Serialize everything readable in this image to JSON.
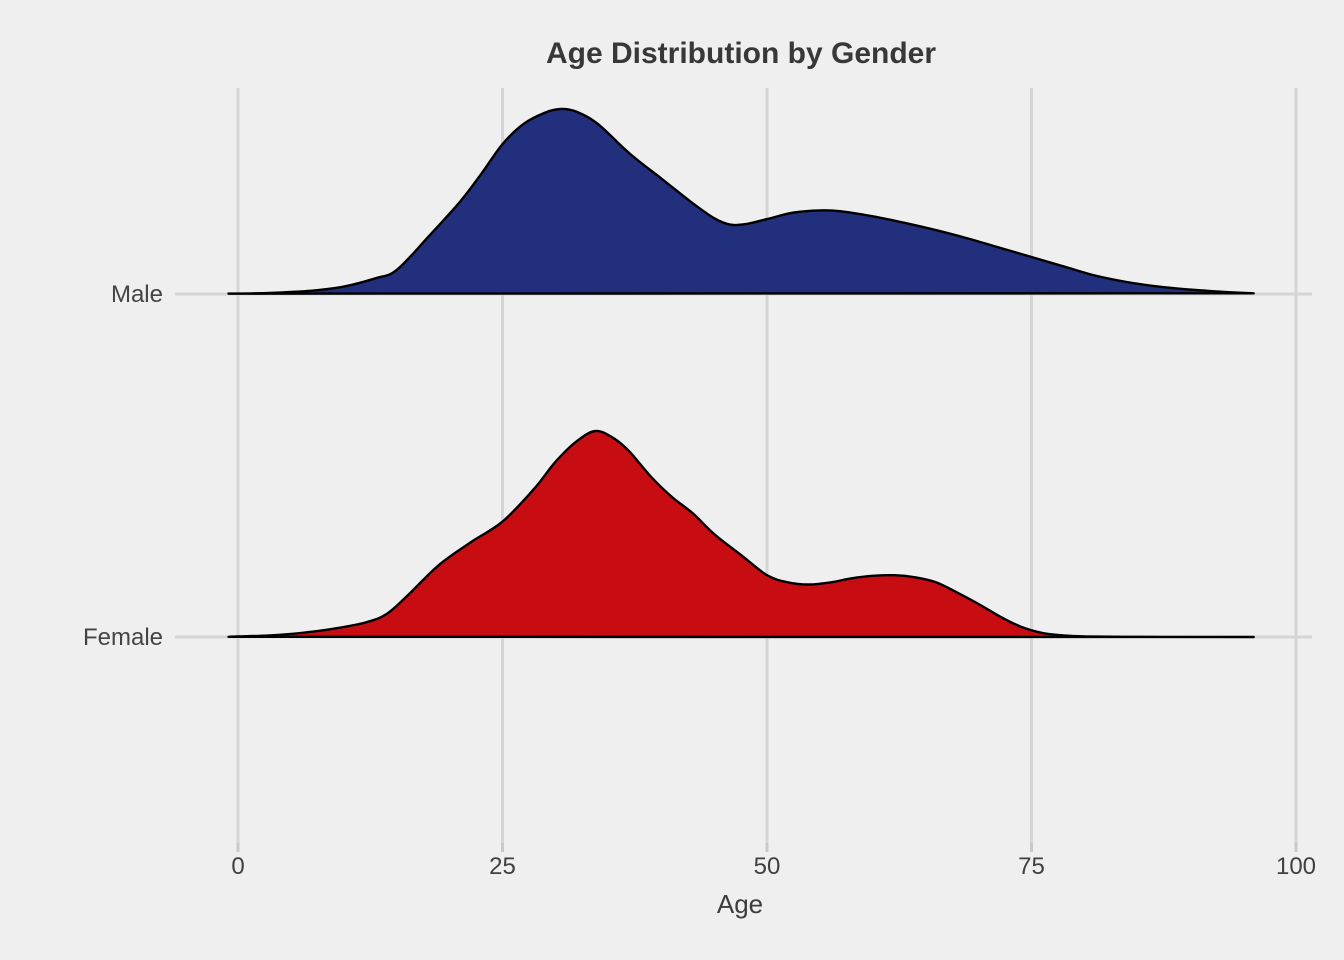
{
  "chart_data": {
    "type": "ridgeline",
    "title": "Age Distribution by Gender",
    "xlabel": "Age",
    "categories": [
      "Male",
      "Female"
    ],
    "x_ticks": [
      0,
      25,
      50,
      75,
      100
    ],
    "x_axis_range": [
      0,
      100
    ],
    "x_drawn_range": [
      -0.9,
      96
    ],
    "grid": "major vertical at x ticks, horizontal at each category baseline",
    "height_scale": "density relative to each curve's own peak (peak = 1.0)",
    "series": [
      {
        "name": "Male",
        "fill": "#212F7D",
        "peak_age": 30.5,
        "secondary_bump_age": 55,
        "points": [
          [
            -0.9,
            0.002
          ],
          [
            3,
            0.006
          ],
          [
            7,
            0.018
          ],
          [
            10,
            0.04
          ],
          [
            13,
            0.085
          ],
          [
            15,
            0.13
          ],
          [
            18,
            0.31
          ],
          [
            21,
            0.5
          ],
          [
            23,
            0.65
          ],
          [
            25,
            0.81
          ],
          [
            27,
            0.92
          ],
          [
            29,
            0.98
          ],
          [
            30.5,
            1.0
          ],
          [
            32,
            0.985
          ],
          [
            34,
            0.92
          ],
          [
            37,
            0.76
          ],
          [
            40,
            0.625
          ],
          [
            43,
            0.49
          ],
          [
            45,
            0.41
          ],
          [
            46.5,
            0.375
          ],
          [
            48,
            0.378
          ],
          [
            50,
            0.405
          ],
          [
            52.5,
            0.44
          ],
          [
            55,
            0.452
          ],
          [
            57,
            0.447
          ],
          [
            60,
            0.42
          ],
          [
            63,
            0.385
          ],
          [
            66,
            0.345
          ],
          [
            69,
            0.3
          ],
          [
            72,
            0.25
          ],
          [
            75,
            0.2
          ],
          [
            78,
            0.15
          ],
          [
            81,
            0.1
          ],
          [
            84,
            0.065
          ],
          [
            87,
            0.04
          ],
          [
            90,
            0.024
          ],
          [
            93,
            0.012
          ],
          [
            96,
            0.004
          ]
        ]
      },
      {
        "name": "Female",
        "fill": "#C80D12",
        "peak_age": 33.8,
        "secondary_bump_age": 62,
        "points": [
          [
            -0.9,
            0.001
          ],
          [
            3,
            0.008
          ],
          [
            6,
            0.02
          ],
          [
            9,
            0.04
          ],
          [
            12,
            0.07
          ],
          [
            14,
            0.11
          ],
          [
            16,
            0.2
          ],
          [
            19,
            0.35
          ],
          [
            22,
            0.46
          ],
          [
            25,
            0.56
          ],
          [
            28,
            0.72
          ],
          [
            30,
            0.85
          ],
          [
            32,
            0.95
          ],
          [
            33.8,
            1.0
          ],
          [
            35.5,
            0.965
          ],
          [
            37,
            0.9
          ],
          [
            39,
            0.78
          ],
          [
            41,
            0.68
          ],
          [
            43,
            0.6
          ],
          [
            45,
            0.5
          ],
          [
            47.5,
            0.4
          ],
          [
            50,
            0.3
          ],
          [
            52,
            0.265
          ],
          [
            54,
            0.255
          ],
          [
            56,
            0.265
          ],
          [
            58,
            0.285
          ],
          [
            60,
            0.297
          ],
          [
            62,
            0.3
          ],
          [
            64,
            0.29
          ],
          [
            66,
            0.265
          ],
          [
            68,
            0.215
          ],
          [
            70,
            0.16
          ],
          [
            72,
            0.1
          ],
          [
            74,
            0.05
          ],
          [
            76,
            0.02
          ],
          [
            78,
            0.008
          ],
          [
            80,
            0.003
          ],
          [
            84,
            0.001
          ],
          [
            90,
            0.0005
          ],
          [
            96,
            0.0
          ]
        ]
      }
    ]
  },
  "colors": {
    "background": "#EFEFEF",
    "gridline": "#D5D5D5",
    "tick_mark": "#C9C9C9",
    "curve_outline": "#000000",
    "title_text": "#383838",
    "axis_text": "#404040",
    "male_fill": "#212F7D",
    "female_fill": "#C80D12"
  }
}
